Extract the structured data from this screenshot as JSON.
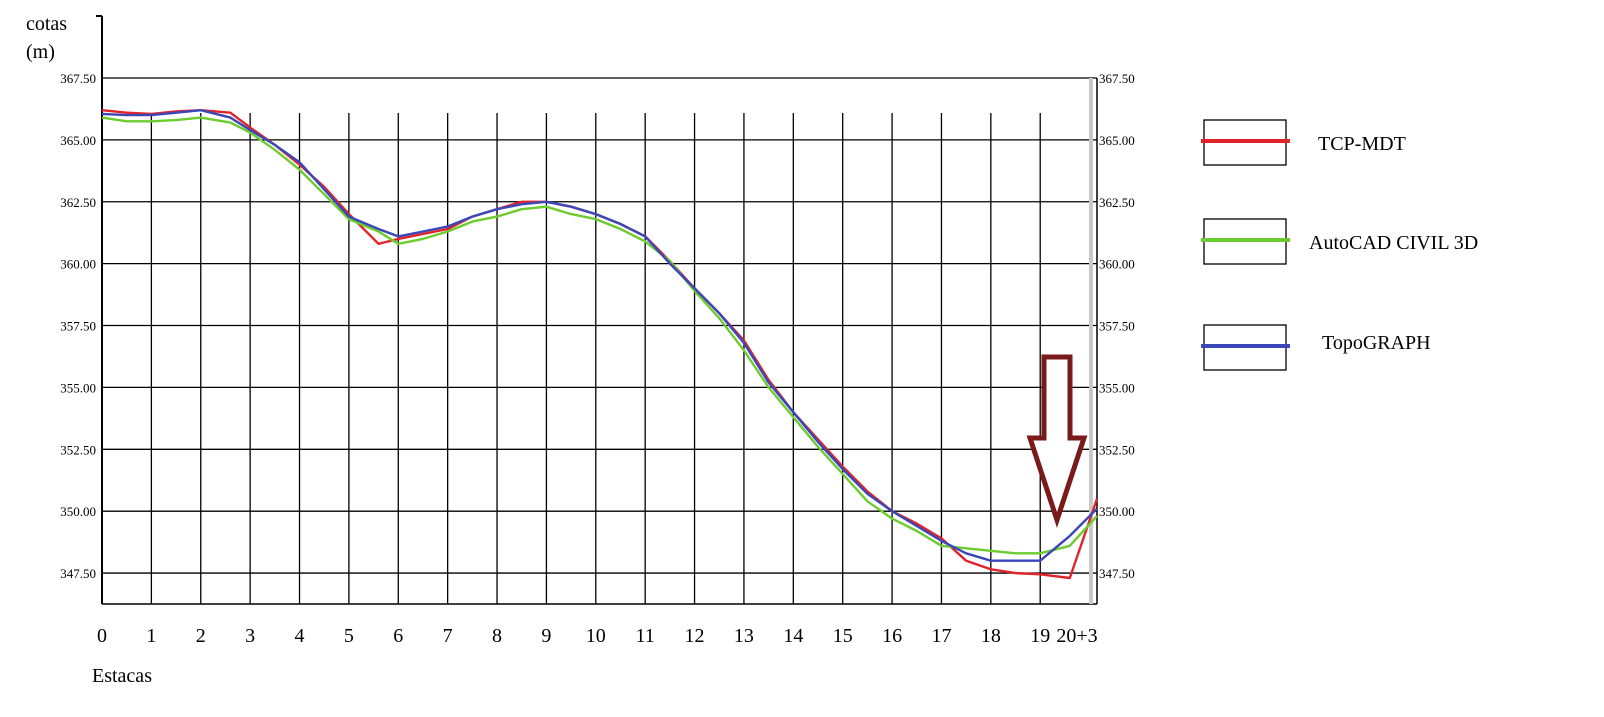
{
  "chart_data": {
    "type": "line",
    "ylabel_line1": "cotas",
    "ylabel_line2": "(m)",
    "xlabel": "Estacas",
    "ylim": [
      346.25,
      367.5
    ],
    "xlim": [
      0,
      20.15
    ],
    "y_ticks": [
      "347.50",
      "350.00",
      "352.50",
      "355.00",
      "357.50",
      "360.00",
      "362.50",
      "365.00",
      "367.50"
    ],
    "y_tick_values": [
      347.5,
      350,
      352.5,
      355,
      357.5,
      360,
      362.5,
      365,
      367.5
    ],
    "x_ticks": [
      "0",
      "1",
      "2",
      "3",
      "4",
      "5",
      "6",
      "7",
      "8",
      "9",
      "10",
      "11",
      "12",
      "13",
      "14",
      "15",
      "16",
      "17",
      "18",
      "19",
      "20+3"
    ],
    "x_tick_values": [
      0,
      1,
      2,
      3,
      4,
      5,
      6,
      7,
      8,
      9,
      10,
      11,
      12,
      13,
      14,
      15,
      16,
      17,
      18,
      19,
      20.15
    ],
    "grid": true,
    "legend_position": "right",
    "series": [
      {
        "name": "TCP-MDT",
        "color": "#e0242a",
        "x": [
          0,
          0.5,
          1,
          1.5,
          2,
          2.6,
          3,
          3.5,
          4,
          4.5,
          5,
          5.6,
          6,
          6.5,
          7,
          7.5,
          8,
          8.5,
          9,
          9.5,
          10,
          10.5,
          11,
          11.5,
          12,
          12.5,
          13,
          13.5,
          14,
          14.5,
          15,
          15.5,
          16,
          16.5,
          17,
          17.5,
          18,
          18.5,
          19,
          19.6,
          20.15
        ],
        "y": [
          366.2,
          366.1,
          366.05,
          366.15,
          366.2,
          366.1,
          365.5,
          364.8,
          364.0,
          363.1,
          362.0,
          360.8,
          361.0,
          361.2,
          361.4,
          361.9,
          362.2,
          362.5,
          362.5,
          362.3,
          362.0,
          361.6,
          361.1,
          360.1,
          359.0,
          358.0,
          356.9,
          355.3,
          354.0,
          352.9,
          351.8,
          350.8,
          350.0,
          349.5,
          348.9,
          348.0,
          347.65,
          347.5,
          347.45,
          347.3,
          350.5
        ]
      },
      {
        "name": "AutoCAD CIVIL 3D",
        "color": "#6ccc2e",
        "x": [
          0,
          0.5,
          1,
          1.5,
          2,
          2.6,
          3,
          3.5,
          4,
          4.5,
          5,
          5.6,
          6,
          6.5,
          7,
          7.5,
          8,
          8.5,
          9,
          9.5,
          10,
          10.5,
          11,
          11.5,
          12,
          12.5,
          13,
          13.5,
          14,
          14.5,
          15,
          15.5,
          16,
          16.5,
          17,
          17.5,
          18,
          18.5,
          19,
          19.6,
          20.15
        ],
        "y": [
          365.9,
          365.75,
          365.75,
          365.8,
          365.9,
          365.7,
          365.3,
          364.6,
          363.8,
          362.8,
          361.8,
          361.3,
          360.8,
          361.0,
          361.3,
          361.7,
          361.9,
          362.2,
          362.3,
          362.0,
          361.8,
          361.4,
          360.9,
          360.1,
          358.9,
          357.8,
          356.5,
          355.0,
          353.8,
          352.6,
          351.5,
          350.4,
          349.7,
          349.2,
          348.6,
          348.5,
          348.4,
          348.3,
          348.3,
          348.6,
          349.8
        ]
      },
      {
        "name": "TopoGRAPH",
        "color": "#3a47b8",
        "x": [
          0,
          0.5,
          1,
          1.5,
          2,
          2.6,
          3,
          3.5,
          4,
          4.5,
          5,
          5.6,
          6,
          6.5,
          7,
          7.5,
          8,
          8.5,
          9,
          9.5,
          10,
          10.5,
          11,
          11.5,
          12,
          12.5,
          13,
          13.5,
          14,
          14.5,
          15,
          15.5,
          16,
          16.5,
          17,
          17.5,
          18,
          18.5,
          19,
          19.6,
          20.15
        ],
        "y": [
          366.05,
          366.0,
          366.0,
          366.1,
          366.2,
          365.9,
          365.4,
          364.8,
          364.1,
          363.0,
          361.9,
          361.4,
          361.1,
          361.3,
          361.5,
          361.9,
          362.2,
          362.4,
          362.5,
          362.3,
          362.0,
          361.6,
          361.1,
          360.0,
          359.0,
          358.0,
          356.8,
          355.2,
          354.0,
          352.8,
          351.7,
          350.7,
          350.0,
          349.4,
          348.8,
          348.3,
          348.0,
          348.0,
          348.0,
          349.0,
          350.1
        ]
      }
    ]
  },
  "legend": {
    "items": [
      {
        "label": "TCP-MDT",
        "color": "#e0242a"
      },
      {
        "label": "AutoCAD CIVIL 3D",
        "color": "#6ccc2e"
      },
      {
        "label": "TopoGRAPH",
        "color": "#3a47b8"
      }
    ]
  },
  "annotation": {
    "icon": "down-arrow-icon",
    "color": "#7a1a1a",
    "points_to_x": 19.6
  }
}
